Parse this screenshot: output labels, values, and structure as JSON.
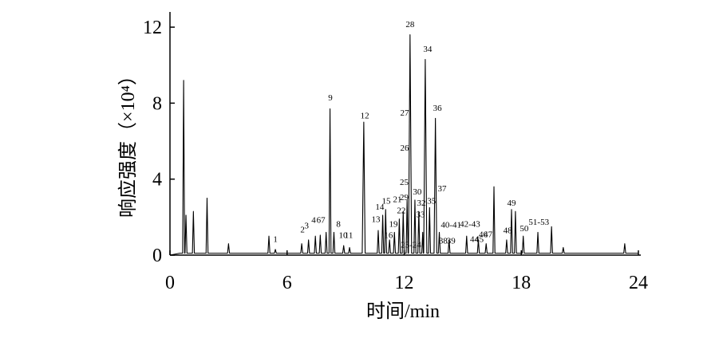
{
  "chart_data": {
    "type": "line",
    "x_label": "时间/min",
    "y_label": "响应强度（×10⁴）",
    "xlim": [
      0,
      24
    ],
    "ylim": [
      0,
      12.8
    ],
    "xticks": [
      0,
      6,
      12,
      18,
      24
    ],
    "yticks": [
      0,
      4,
      8,
      12
    ],
    "x": [
      0,
      0.5,
      0.65,
      0.7,
      0.75,
      0.77,
      0.82,
      0.87,
      1.15,
      1.2,
      1.25,
      1.85,
      1.9,
      1.95,
      2.95,
      3.0,
      3.05,
      5.02,
      5.07,
      5.12,
      5.35,
      5.4,
      5.45,
      6.7,
      6.75,
      6.8,
      7.05,
      7.1,
      7.15,
      7.4,
      7.45,
      7.5,
      7.65,
      7.7,
      7.75,
      7.95,
      8.0,
      8.05,
      8.15,
      8.2,
      8.25,
      8.35,
      8.4,
      8.45,
      8.85,
      8.9,
      8.95,
      9.15,
      9.2,
      9.25,
      9.85,
      9.93,
      10.0,
      10.62,
      10.67,
      10.72,
      10.85,
      10.9,
      10.95,
      11.0,
      11.05,
      11.1,
      11.2,
      11.25,
      11.3,
      11.45,
      11.5,
      11.55,
      11.7,
      11.75,
      11.8,
      11.9,
      11.95,
      12.0,
      12.1,
      12.15,
      12.2,
      12.22,
      12.3,
      12.38,
      12.5,
      12.55,
      12.6,
      12.7,
      12.75,
      12.8,
      12.9,
      12.95,
      12.98,
      13.0,
      13.08,
      13.16,
      13.25,
      13.3,
      13.35,
      13.53,
      13.6,
      13.67,
      13.75,
      13.8,
      13.85,
      14.25,
      14.3,
      14.35,
      15.15,
      15.2,
      15.25,
      15.75,
      15.8,
      15.85,
      16.15,
      16.2,
      16.25,
      16.55,
      16.6,
      16.65,
      17.2,
      17.25,
      17.3,
      17.45,
      17.5,
      17.55,
      17.65,
      17.7,
      17.75,
      18.05,
      18.1,
      18.15,
      18.8,
      18.85,
      18.9,
      19.5,
      19.55,
      19.6,
      20.1,
      20.15,
      20.2,
      23.25,
      23.3,
      23.35,
      24
    ],
    "series": [
      {
        "color": "#000000",
        "values": [
          0,
          0.1,
          0.1,
          9.2,
          0.1,
          0.1,
          2.1,
          0.1,
          0.1,
          2.3,
          0.1,
          0.1,
          3.0,
          0.1,
          0.1,
          0.6,
          0.1,
          0.1,
          1.0,
          0.1,
          0.1,
          0.3,
          0.1,
          0.1,
          0.6,
          0.1,
          0.1,
          0.8,
          0.1,
          0.1,
          1.0,
          0.1,
          0.1,
          1.05,
          0.1,
          0.1,
          1.2,
          0.1,
          0.1,
          7.7,
          0.1,
          0.1,
          1.2,
          0.1,
          0.1,
          0.5,
          0.1,
          0.1,
          0.4,
          0.1,
          0.1,
          7.0,
          0.1,
          0.1,
          1.3,
          0.1,
          0.1,
          2.1,
          0.1,
          0.1,
          2.4,
          0.1,
          0.1,
          0.8,
          0.1,
          0.1,
          1.2,
          0.1,
          0.1,
          1.9,
          0.1,
          0.1,
          2.3,
          0.1,
          0.1,
          2.9,
          0.1,
          0.1,
          11.6,
          0.1,
          0.1,
          2.9,
          0.1,
          0.1,
          2.3,
          0.1,
          0.1,
          1.2,
          0.1,
          0.1,
          10.3,
          0.1,
          0.1,
          2.5,
          0.1,
          0.1,
          7.2,
          0.1,
          0.1,
          1.2,
          0.1,
          0.1,
          0.8,
          0.1,
          0.1,
          1.0,
          0.1,
          0.1,
          0.8,
          0.1,
          0.1,
          0.6,
          0.1,
          0.1,
          3.6,
          0.1,
          0.1,
          0.8,
          0.1,
          0.1,
          2.4,
          0.1,
          0.1,
          2.3,
          0.1,
          0.1,
          1.0,
          0.1,
          0.1,
          1.2,
          0.1,
          0.1,
          1.5,
          0.1,
          0.1,
          0.4,
          0.1,
          0.1,
          0.6,
          0.1,
          0.1
        ]
      }
    ],
    "annotations": [
      {
        "text": "1",
        "x": 5.4,
        "y": 0.7
      },
      {
        "text": "2",
        "x": 6.79,
        "y": 1.2
      },
      {
        "text": "3",
        "x": 7.0,
        "y": 1.4
      },
      {
        "text": "4",
        "x": 7.36,
        "y": 1.7
      },
      {
        "text": "67",
        "x": 7.73,
        "y": 1.7
      },
      {
        "text": "8",
        "x": 8.63,
        "y": 1.5
      },
      {
        "text": "9",
        "x": 8.22,
        "y": 8.15
      },
      {
        "text": "10",
        "x": 8.87,
        "y": 0.9
      },
      {
        "text": "11",
        "x": 9.16,
        "y": 0.9
      },
      {
        "text": "12",
        "x": 9.98,
        "y": 7.2
      },
      {
        "text": "13",
        "x": 10.55,
        "y": 1.75
      },
      {
        "text": "14",
        "x": 10.75,
        "y": 2.4
      },
      {
        "text": "15",
        "x": 11.08,
        "y": 2.7
      },
      {
        "text": "16",
        "x": 11.2,
        "y": 0.9
      },
      {
        "text": "19",
        "x": 11.45,
        "y": 1.5
      },
      {
        "text": "21",
        "x": 11.65,
        "y": 2.8
      },
      {
        "text": "22",
        "x": 11.85,
        "y": 2.2
      },
      {
        "text": "29",
        "x": 12.0,
        "y": 2.9
      },
      {
        "text": "25",
        "x": 12.0,
        "y": 3.7
      },
      {
        "text": "26",
        "x": 12.02,
        "y": 5.5
      },
      {
        "text": "27",
        "x": 12.02,
        "y": 7.35
      },
      {
        "text": "28",
        "x": 12.3,
        "y": 12.0
      },
      {
        "text": "30",
        "x": 12.67,
        "y": 3.2
      },
      {
        "text": "32",
        "x": 12.88,
        "y": 2.6
      },
      {
        "text": "33",
        "x": 12.84,
        "y": 2.0
      },
      {
        "text": "34",
        "x": 13.2,
        "y": 10.7
      },
      {
        "text": "35",
        "x": 13.4,
        "y": 2.7
      },
      {
        "text": "36",
        "x": 13.7,
        "y": 7.6
      },
      {
        "text": "37",
        "x": 13.94,
        "y": 3.35
      },
      {
        "text": "23-24",
        "x": 12.35,
        "y": 0.4
      },
      {
        "text": "38",
        "x": 14.0,
        "y": 0.6
      },
      {
        "text": "39",
        "x": 14.4,
        "y": 0.6
      },
      {
        "text": "40-41",
        "x": 14.4,
        "y": 1.45
      },
      {
        "text": "42-43",
        "x": 15.37,
        "y": 1.5
      },
      {
        "text": "44",
        "x": 15.6,
        "y": 0.7
      },
      {
        "text": "45",
        "x": 15.85,
        "y": 0.7
      },
      {
        "text": "46",
        "x": 16.05,
        "y": 0.95
      },
      {
        "text": "47",
        "x": 16.3,
        "y": 0.95
      },
      {
        "text": "48",
        "x": 17.3,
        "y": 1.15
      },
      {
        "text": "49",
        "x": 17.5,
        "y": 2.6
      },
      {
        "text": "50",
        "x": 18.15,
        "y": 1.25
      },
      {
        "text": "51-53",
        "x": 18.9,
        "y": 1.6
      }
    ]
  }
}
